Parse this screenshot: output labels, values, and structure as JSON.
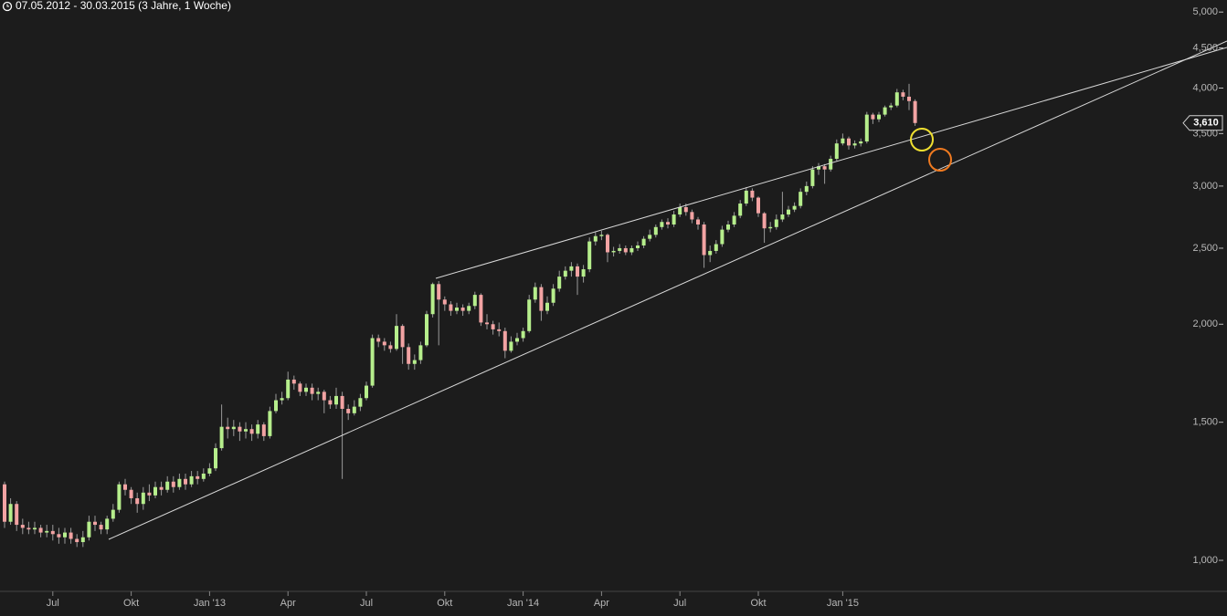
{
  "chart_data": {
    "type": "candlestick",
    "title": "07.05.2012 - 30.03.2015 (3 Jahre, 1 Woche)",
    "log_scale": true,
    "ylim": [
      913,
      5180
    ],
    "yticks": [
      {
        "value": 1000,
        "label": "1,000"
      },
      {
        "value": 1500,
        "label": "1,500"
      },
      {
        "value": 2000,
        "label": "2,000"
      },
      {
        "value": 2500,
        "label": "2,500"
      },
      {
        "value": 3000,
        "label": "3,000"
      },
      {
        "value": 3500,
        "label": "3,500"
      },
      {
        "value": 4000,
        "label": "4,000"
      },
      {
        "value": 4500,
        "label": "4,500"
      },
      {
        "value": 5000,
        "label": "5,000"
      }
    ],
    "up_color": "#b6ee8c",
    "down_color": "#f2a3a3",
    "last_close_label": "3,610",
    "categories": [
      null,
      null,
      null,
      null,
      null,
      null,
      null,
      null,
      "Jul",
      null,
      null,
      null,
      null,
      null,
      null,
      null,
      null,
      null,
      null,
      null,
      null,
      "Okt",
      null,
      null,
      null,
      null,
      null,
      null,
      null,
      null,
      null,
      null,
      null,
      null,
      "Jan '13",
      null,
      null,
      null,
      null,
      null,
      null,
      null,
      null,
      null,
      null,
      null,
      null,
      "Apr",
      null,
      null,
      null,
      null,
      null,
      null,
      null,
      null,
      null,
      null,
      null,
      null,
      "Jul",
      null,
      null,
      null,
      null,
      null,
      null,
      null,
      null,
      null,
      null,
      null,
      null,
      "Okt",
      null,
      null,
      null,
      null,
      null,
      null,
      null,
      null,
      null,
      null,
      null,
      null,
      "Jan '14",
      null,
      null,
      null,
      null,
      null,
      null,
      null,
      null,
      null,
      null,
      null,
      null,
      "Apr",
      null,
      null,
      null,
      null,
      null,
      null,
      null,
      null,
      null,
      null,
      null,
      null,
      "Jul",
      null,
      null,
      null,
      null,
      null,
      null,
      null,
      null,
      null,
      null,
      null,
      null,
      "Okt",
      null,
      null,
      null,
      null,
      null,
      null,
      null,
      null,
      null,
      null,
      null,
      null,
      null,
      "Jan '15",
      null,
      null,
      null,
      null,
      null,
      null,
      null,
      null,
      null,
      null,
      null,
      null
    ],
    "open": [
      1250,
      1120,
      1180,
      1110,
      1100,
      1095,
      1100,
      1085,
      1090,
      1080,
      1070,
      1085,
      1065,
      1055,
      1070,
      1120,
      1110,
      1095,
      1130,
      1160,
      1250,
      1230,
      1200,
      1180,
      1220,
      1210,
      1240,
      1230,
      1260,
      1240,
      1270,
      1250,
      1280,
      1270,
      1290,
      1310,
      1390,
      1480,
      1470,
      1480,
      1460,
      1470,
      1450,
      1490,
      1440,
      1550,
      1600,
      1610,
      1700,
      1680,
      1640,
      1660,
      1630,
      1640,
      1600,
      1580,
      1620,
      1560,
      1540,
      1570,
      1610,
      1670,
      1920,
      1900,
      1880,
      1860,
      1990,
      1870,
      1780,
      1800,
      1880,
      2060,
      2250,
      2150,
      2120,
      2080,
      2100,
      2080,
      2110,
      2180,
      2010,
      2000,
      1970,
      1960,
      1850,
      1900,
      1920,
      1960,
      2150,
      2230,
      2080,
      2130,
      2220,
      2300,
      2340,
      2370,
      2300,
      2350,
      2550,
      2590,
      2600,
      2470,
      2480,
      2500,
      2470,
      2500,
      2520,
      2570,
      2600,
      2660,
      2700,
      2680,
      2760,
      2820,
      2780,
      2720,
      2680,
      2450,
      2480,
      2530,
      2640,
      2680,
      2750,
      2850,
      2960,
      2900,
      2770,
      2650,
      2660,
      2720,
      2760,
      2800,
      2830,
      2950,
      3000,
      3150,
      3180,
      3150,
      3250,
      3400,
      3450,
      3380,
      3400,
      3420,
      3700,
      3650,
      3700,
      3780,
      3800,
      3950,
      3900,
      3850
    ],
    "high": [
      1260,
      1200,
      1190,
      1130,
      1120,
      1120,
      1110,
      1110,
      1110,
      1100,
      1100,
      1100,
      1080,
      1090,
      1140,
      1140,
      1120,
      1140,
      1180,
      1260,
      1270,
      1240,
      1220,
      1240,
      1250,
      1260,
      1260,
      1280,
      1280,
      1290,
      1290,
      1300,
      1300,
      1310,
      1330,
      1410,
      1580,
      1520,
      1510,
      1500,
      1500,
      1490,
      1510,
      1500,
      1570,
      1630,
      1640,
      1740,
      1720,
      1690,
      1680,
      1680,
      1660,
      1650,
      1620,
      1660,
      1640,
      1580,
      1600,
      1630,
      1690,
      1940,
      1940,
      1920,
      1900,
      2060,
      2000,
      1890,
      1830,
      1900,
      2080,
      2260,
      2270,
      2170,
      2140,
      2130,
      2120,
      2130,
      2200,
      2190,
      2060,
      2020,
      2010,
      1980,
      1930,
      1950,
      1980,
      2180,
      2260,
      2250,
      2170,
      2250,
      2340,
      2370,
      2400,
      2390,
      2380,
      2580,
      2620,
      2630,
      2610,
      2510,
      2530,
      2520,
      2520,
      2550,
      2590,
      2640,
      2680,
      2720,
      2730,
      2790,
      2850,
      2850,
      2800,
      2740,
      2700,
      2520,
      2560,
      2670,
      2710,
      2780,
      2880,
      2990,
      2980,
      2910,
      2780,
      2700,
      2760,
      2950,
      2830,
      2860,
      2980,
      3040,
      3180,
      3210,
      3200,
      3280,
      3440,
      3500,
      3470,
      3430,
      3450,
      3730,
      3720,
      3730,
      3800,
      3830,
      3990,
      3980,
      4050,
      3870
    ],
    "low": [
      1100,
      1110,
      1090,
      1080,
      1080,
      1080,
      1070,
      1070,
      1060,
      1050,
      1050,
      1050,
      1040,
      1040,
      1060,
      1090,
      1080,
      1080,
      1120,
      1150,
      1210,
      1180,
      1150,
      1160,
      1190,
      1200,
      1210,
      1220,
      1220,
      1230,
      1230,
      1240,
      1250,
      1260,
      1280,
      1300,
      1380,
      1430,
      1440,
      1420,
      1430,
      1420,
      1430,
      1420,
      1430,
      1540,
      1580,
      1600,
      1650,
      1620,
      1620,
      1600,
      1600,
      1540,
      1560,
      1560,
      1270,
      1510,
      1530,
      1550,
      1600,
      1660,
      1870,
      1850,
      1840,
      1850,
      1780,
      1750,
      1750,
      1780,
      1870,
      2040,
      1880,
      2080,
      2050,
      2060,
      2050,
      2060,
      2090,
      1990,
      1970,
      1940,
      1930,
      1810,
      1840,
      1880,
      1900,
      1950,
      2130,
      2020,
      2060,
      2110,
      2200,
      2280,
      2300,
      2180,
      2260,
      2330,
      2520,
      2560,
      2400,
      2440,
      2460,
      2450,
      2450,
      2480,
      2500,
      2550,
      2580,
      2640,
      2650,
      2660,
      2740,
      2750,
      2690,
      2640,
      2360,
      2400,
      2460,
      2510,
      2620,
      2660,
      2730,
      2830,
      2870,
      2740,
      2540,
      2620,
      2640,
      2700,
      2740,
      2780,
      2810,
      2920,
      2980,
      3100,
      3020,
      3130,
      3230,
      3380,
      3340,
      3350,
      3370,
      3400,
      3600,
      3620,
      3680,
      3750,
      3780,
      3860,
      3750,
      3580
    ],
    "close": [
      1120,
      1180,
      1110,
      1100,
      1095,
      1100,
      1085,
      1090,
      1080,
      1070,
      1085,
      1065,
      1055,
      1070,
      1120,
      1110,
      1095,
      1130,
      1160,
      1250,
      1230,
      1200,
      1180,
      1220,
      1210,
      1240,
      1230,
      1260,
      1240,
      1270,
      1250,
      1280,
      1270,
      1290,
      1310,
      1390,
      1480,
      1470,
      1480,
      1460,
      1470,
      1450,
      1490,
      1440,
      1550,
      1600,
      1610,
      1700,
      1680,
      1640,
      1660,
      1630,
      1640,
      1600,
      1580,
      1620,
      1560,
      1540,
      1570,
      1610,
      1670,
      1920,
      1900,
      1880,
      1860,
      1990,
      1870,
      1780,
      1800,
      1880,
      2060,
      2250,
      2150,
      2120,
      2080,
      2100,
      2080,
      2110,
      2180,
      2010,
      2000,
      1970,
      1960,
      1850,
      1900,
      1920,
      1960,
      2150,
      2230,
      2080,
      2130,
      2220,
      2300,
      2340,
      2370,
      2300,
      2350,
      2550,
      2590,
      2600,
      2470,
      2480,
      2500,
      2470,
      2500,
      2520,
      2570,
      2600,
      2660,
      2700,
      2680,
      2760,
      2820,
      2780,
      2720,
      2680,
      2450,
      2480,
      2530,
      2640,
      2680,
      2750,
      2850,
      2960,
      2900,
      2770,
      2650,
      2660,
      2720,
      2760,
      2800,
      2830,
      2950,
      3000,
      3150,
      3180,
      3150,
      3250,
      3400,
      3450,
      3380,
      3400,
      3420,
      3700,
      3650,
      3700,
      3780,
      3800,
      3950,
      3900,
      3850,
      3610
    ]
  }
}
